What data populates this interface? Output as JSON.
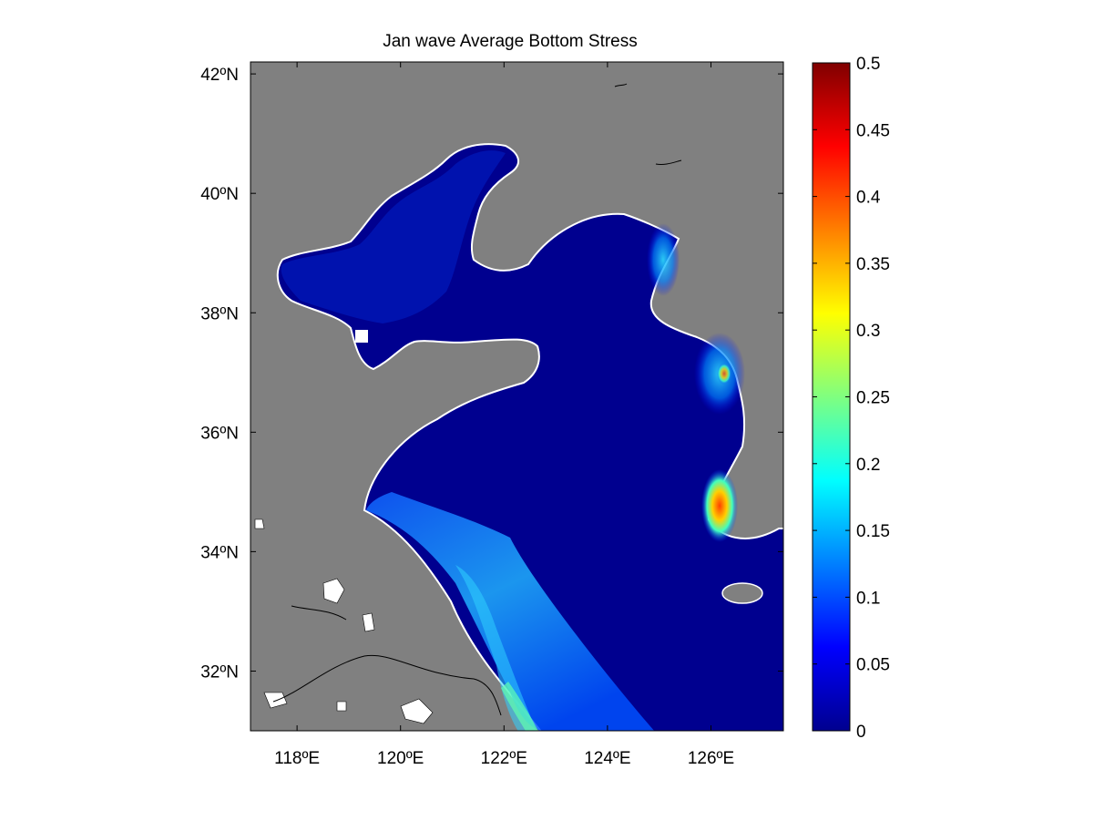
{
  "title": "Jan wave Average Bottom Stress",
  "x_axis": {
    "ticks": [
      {
        "value": 118,
        "label": "118ºE"
      },
      {
        "value": 120,
        "label": "120ºE"
      },
      {
        "value": 122,
        "label": "122ºE"
      },
      {
        "value": 124,
        "label": "124ºE"
      },
      {
        "value": 126,
        "label": "126ºE"
      }
    ],
    "range": [
      117.1,
      127.4
    ]
  },
  "y_axis": {
    "ticks": [
      {
        "value": 42,
        "label": "42ºN"
      },
      {
        "value": 40,
        "label": "40ºN"
      },
      {
        "value": 38,
        "label": "38ºN"
      },
      {
        "value": 36,
        "label": "36ºN"
      },
      {
        "value": 34,
        "label": "34ºN"
      },
      {
        "value": 32,
        "label": "32ºN"
      }
    ],
    "range": [
      31.0,
      42.2
    ]
  },
  "colorbar": {
    "range": [
      0,
      0.5
    ],
    "colormap": "jet",
    "labels": [
      "0.5",
      "0.45",
      "0.4",
      "0.35",
      "0.3",
      "0.25",
      "0.2",
      "0.15",
      "0.1",
      "0.05",
      "0"
    ],
    "values": [
      0.5,
      0.45,
      0.4,
      0.35,
      0.3,
      0.25,
      0.2,
      0.15,
      0.1,
      0.05,
      0
    ]
  },
  "colors": {
    "land": "#808080",
    "sea_base": "#00008f",
    "background": "#ffffff"
  }
}
